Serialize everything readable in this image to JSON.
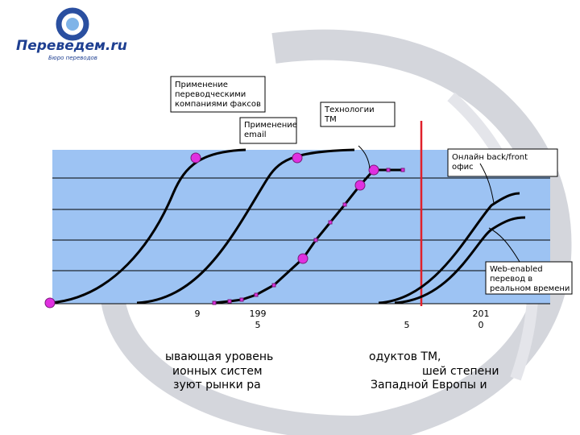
{
  "logo": {
    "name": "Переведем.ru",
    "tagline": "Бюро переводов"
  },
  "callouts": [
    "Применение переводческими компаниями факсов",
    "Применение email",
    "Технологии TM",
    "Онлайн back/front офис",
    "Web-enabled перевод в реальном времени"
  ],
  "axis_labels": [
    [
      "9"
    ],
    [
      "199",
      "5"
    ],
    [
      "5"
    ],
    [
      "201",
      "0"
    ]
  ],
  "caption_fragments": [
    [
      "ывающая уровень",
      "одуктов TM,"
    ],
    [
      "ионных систем",
      "шей степени"
    ],
    [
      "зуют рынки ра",
      "Западной Европы и"
    ]
  ]
}
